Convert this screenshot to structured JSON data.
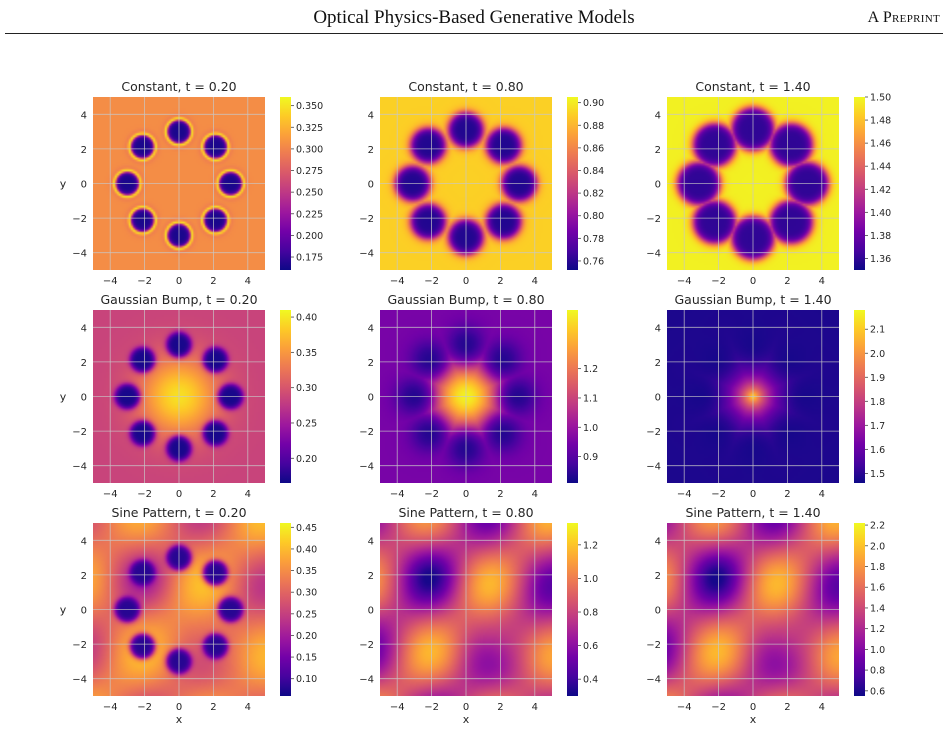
{
  "header": {
    "title": "Optical Physics-Based Generative Models",
    "tag": "A Preprint"
  },
  "colors": {
    "colormap": "plasma",
    "plasma_stops": [
      "#0d0887",
      "#46039f",
      "#7201a8",
      "#9c179e",
      "#bd3786",
      "#d8576b",
      "#ed7953",
      "#fb9f3a",
      "#fdca26",
      "#f0f921"
    ],
    "grid": "#c8c8c8"
  },
  "chart_data": [
    {
      "type": "heatmap",
      "title": "Constant, t = 0.20",
      "ylabel": "y",
      "xlabel": "",
      "xlim": [
        -5,
        5
      ],
      "ylim": [
        -5,
        5
      ],
      "xticks": [
        "−4",
        "−2",
        "0",
        "2",
        "4"
      ],
      "yticks": [
        "4",
        "2",
        "0",
        "−2",
        "−4"
      ],
      "colorbar": {
        "range": [
          0.16,
          0.36
        ],
        "ticks": [
          "0.350",
          "0.325",
          "0.300",
          "0.275",
          "0.250",
          "0.225",
          "0.200",
          "0.175"
        ]
      },
      "background_value": 0.305,
      "blob_value": 0.165,
      "blob_rim_value": 0.36,
      "ring": {
        "radius": 3.0,
        "count": 8,
        "blob_radius": 0.72
      },
      "grid": true
    },
    {
      "type": "heatmap",
      "title": "Constant, t = 0.80",
      "ylabel": "",
      "xlabel": "",
      "xlim": [
        -5,
        5
      ],
      "ylim": [
        -5,
        5
      ],
      "xticks": [
        "−4",
        "−2",
        "0",
        "2",
        "4"
      ],
      "yticks": [
        "4",
        "2",
        "0",
        "−2",
        "−4"
      ],
      "colorbar": {
        "range": [
          0.752,
          0.905
        ],
        "ticks": [
          "0.90",
          "0.88",
          "0.86",
          "0.84",
          "0.82",
          "0.80",
          "0.78",
          "0.76"
        ]
      },
      "background_value": 0.89,
      "blob_value": 0.758,
      "ring": {
        "radius": 3.1,
        "count": 8,
        "blob_radius": 1.02
      },
      "grid": true
    },
    {
      "type": "heatmap",
      "title": "Constant, t = 1.40",
      "ylabel": "",
      "xlabel": "",
      "xlim": [
        -5,
        5
      ],
      "ylim": [
        -5,
        5
      ],
      "xticks": [
        "−4",
        "−2",
        "0",
        "2",
        "4"
      ],
      "yticks": [
        "4",
        "2",
        "0",
        "−2",
        "−4"
      ],
      "colorbar": {
        "range": [
          1.35,
          1.5
        ],
        "ticks": [
          "1.50",
          "1.48",
          "1.46",
          "1.44",
          "1.42",
          "1.40",
          "1.38",
          "1.36"
        ]
      },
      "background_value": 1.497,
      "blob_value": 1.36,
      "ring": {
        "radius": 3.15,
        "count": 8,
        "blob_radius": 1.25
      },
      "grid": true
    },
    {
      "type": "heatmap",
      "title": "Gaussian Bump, t = 0.20",
      "ylabel": "y",
      "xlabel": "",
      "xlim": [
        -5,
        5
      ],
      "ylim": [
        -5,
        5
      ],
      "xticks": [
        "−4",
        "−2",
        "0",
        "2",
        "4"
      ],
      "yticks": [
        "4",
        "2",
        "0",
        "−2",
        "−4"
      ],
      "colorbar": {
        "range": [
          0.165,
          0.41
        ],
        "ticks": [
          "0.40",
          "0.35",
          "0.30",
          "0.25",
          "0.20"
        ]
      },
      "background_value": 0.285,
      "peak_value": 0.395,
      "blob_value": 0.17,
      "ring": {
        "radius": 3.0,
        "count": 8,
        "blob_radius": 0.72
      },
      "grid": true
    },
    {
      "type": "heatmap",
      "title": "Gaussian Bump, t = 0.80",
      "ylabel": "",
      "xlabel": "",
      "xlim": [
        -5,
        5
      ],
      "ylim": [
        -5,
        5
      ],
      "xticks": [
        "−4",
        "−2",
        "0",
        "2",
        "4"
      ],
      "yticks": [
        "4",
        "2",
        "0",
        "−2",
        "−4"
      ],
      "colorbar": {
        "range": [
          0.81,
          1.4
        ],
        "ticks": [
          "1.2",
          "1.1",
          "1.0",
          "0.9"
        ]
      },
      "background_value": 0.95,
      "peak_value": 1.39,
      "blob_value": 0.83,
      "ring": {
        "radius": 3.0,
        "count": 8,
        "blob_radius": 1.0
      },
      "grid": true
    },
    {
      "type": "heatmap",
      "title": "Gaussian Bump, t = 1.40",
      "ylabel": "",
      "xlabel": "",
      "xlim": [
        -5,
        5
      ],
      "ylim": [
        -5,
        5
      ],
      "xticks": [
        "−4",
        "−2",
        "0",
        "2",
        "4"
      ],
      "yticks": [
        "4",
        "2",
        "0",
        "−2",
        "−4"
      ],
      "colorbar": {
        "range": [
          1.46,
          2.18
        ],
        "ticks": [
          "2.1",
          "2.0",
          "1.9",
          "1.8",
          "1.7",
          "1.6",
          "1.5"
        ]
      },
      "background_value": 1.48,
      "peak_value": 2.15,
      "blob_value": 1.47,
      "ring": {
        "radius": 3.0,
        "count": 8,
        "blob_radius": 1.1
      },
      "grid": true
    },
    {
      "type": "heatmap",
      "title": "Sine Pattern, t = 0.20",
      "ylabel": "y",
      "xlabel": "x",
      "xlim": [
        -5,
        5
      ],
      "ylim": [
        -5,
        5
      ],
      "xticks": [
        "−4",
        "−2",
        "0",
        "2",
        "4"
      ],
      "yticks": [
        "4",
        "2",
        "0",
        "−2",
        "−4"
      ],
      "colorbar": {
        "range": [
          0.06,
          0.46
        ],
        "ticks": [
          "0.45",
          "0.40",
          "0.35",
          "0.30",
          "0.25",
          "0.20",
          "0.15",
          "0.10"
        ]
      },
      "sine_min": 0.2,
      "sine_max": 0.44,
      "blob_value": 0.08,
      "ring": {
        "radius": 3.0,
        "count": 8,
        "blob_radius": 0.72
      },
      "grid": true
    },
    {
      "type": "heatmap",
      "title": "Sine Pattern, t = 0.80",
      "ylabel": "",
      "xlabel": "x",
      "xlim": [
        -5,
        5
      ],
      "ylim": [
        -5,
        5
      ],
      "xticks": [
        "−4",
        "−2",
        "0",
        "2",
        "4"
      ],
      "yticks": [
        "4",
        "2",
        "0",
        "−2",
        "−4"
      ],
      "colorbar": {
        "range": [
          0.3,
          1.33
        ],
        "ticks": [
          "1.2",
          "1.0",
          "0.8",
          "0.6",
          "0.4"
        ]
      },
      "sine_min": 0.32,
      "sine_max": 1.3,
      "grid": true
    },
    {
      "type": "heatmap",
      "title": "Sine Pattern, t = 1.40",
      "ylabel": "",
      "xlabel": "x",
      "xlim": [
        -5,
        5
      ],
      "ylim": [
        -5,
        5
      ],
      "xticks": [
        "−4",
        "−2",
        "0",
        "2",
        "4"
      ],
      "yticks": [
        "4",
        "2",
        "0",
        "−2",
        "−4"
      ],
      "colorbar": {
        "range": [
          0.55,
          2.22
        ],
        "ticks": [
          "2.2",
          "2.0",
          "1.8",
          "1.6",
          "1.4",
          "1.2",
          "1.0",
          "0.8",
          "0.6"
        ]
      },
      "sine_min": 0.58,
      "sine_max": 2.18,
      "grid": true
    }
  ]
}
